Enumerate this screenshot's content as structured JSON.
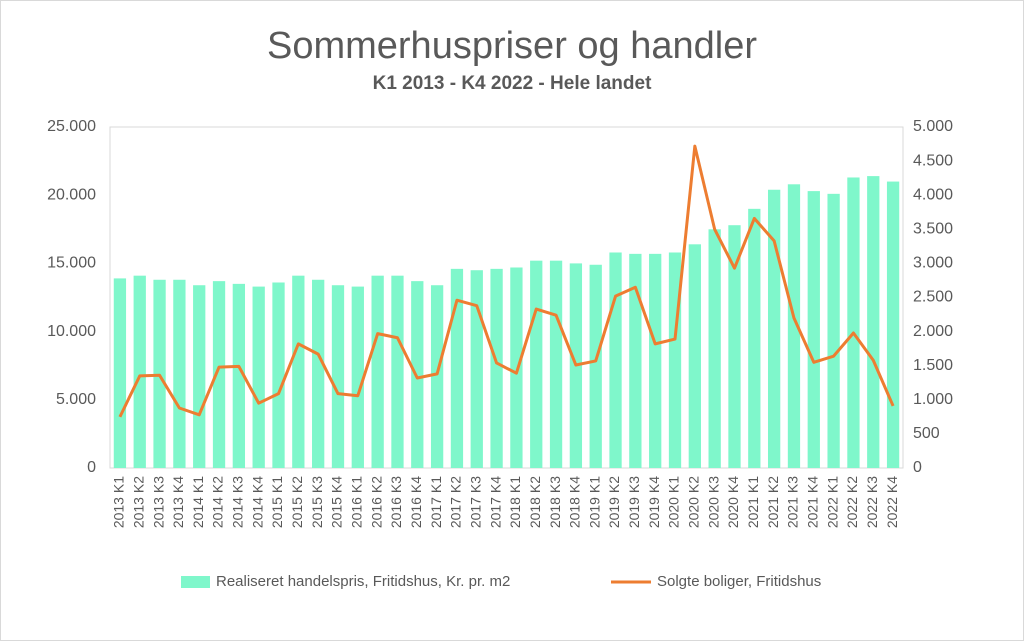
{
  "chart_data": {
    "type": "bar",
    "title": "Sommerhuspriser og handler",
    "subtitle": "K1 2013 - K4 2022 - Hele landet",
    "categories": [
      "2013 K1",
      "2013 K2",
      "2013 K3",
      "2013 K4",
      "2014 K1",
      "2014 K2",
      "2014 K3",
      "2014 K4",
      "2015 K1",
      "2015 K2",
      "2015 K3",
      "2015 K4",
      "2016 K1",
      "2016 K2",
      "2016 K3",
      "2016 K4",
      "2017 K1",
      "2017 K2",
      "2017 K3",
      "2017 K4",
      "2018 K1",
      "2018 K2",
      "2018 K3",
      "2018 K4",
      "2019 K1",
      "2019 K2",
      "2019 K3",
      "2019 K4",
      "2020 K1",
      "2020 K2",
      "2020 K3",
      "2020 K4",
      "2021 K1",
      "2021 K2",
      "2021 K3",
      "2021 K4",
      "2022 K1",
      "2022 K2",
      "2022 K3",
      "2022 K4"
    ],
    "series": [
      {
        "name": "Realiseret handelspris, Fritidshus, Kr. pr. m2",
        "type": "bar",
        "color": "#7ff7cb",
        "values": [
          13900,
          14100,
          13800,
          13800,
          13400,
          13700,
          13500,
          13300,
          13600,
          14100,
          13800,
          13400,
          13300,
          14100,
          14100,
          13700,
          13400,
          14600,
          14500,
          14600,
          14700,
          15200,
          15200,
          15000,
          14900,
          15800,
          15700,
          15700,
          15800,
          16400,
          17500,
          17800,
          19000,
          20400,
          20800,
          20300,
          20100,
          21300,
          21400,
          21000
        ]
      },
      {
        "name": "Solgte boliger, Fritidshus",
        "type": "line",
        "axis": "y2",
        "color": "#ed7d31",
        "values": [
          750,
          1350,
          1360,
          880,
          780,
          1480,
          1490,
          950,
          1090,
          1820,
          1670,
          1090,
          1060,
          1970,
          1910,
          1320,
          1380,
          2460,
          2380,
          1540,
          1390,
          2330,
          2240,
          1510,
          1570,
          2520,
          2650,
          1820,
          1890,
          4720,
          3500,
          2930,
          3660,
          3330,
          2200,
          1550,
          1640,
          1980,
          1580,
          910
        ]
      }
    ],
    "ylim": [
      0,
      25000
    ],
    "yticks": [
      0,
      {
        "value": 5000,
        "label": "5.000"
      },
      {
        "value": 10000,
        "label": "10.000"
      },
      {
        "value": 15000,
        "label": "15.000"
      },
      {
        "value": 20000,
        "label": "20.000"
      },
      {
        "value": 25000,
        "label": "25.000"
      }
    ],
    "y2lim": [
      0,
      5000
    ],
    "y2ticks": [
      0,
      500,
      {
        "value": 1000,
        "label": "1.000"
      },
      {
        "value": 1500,
        "label": "1.500"
      },
      {
        "value": 2000,
        "label": "2.000"
      },
      {
        "value": 2500,
        "label": "2.500"
      },
      {
        "value": 3000,
        "label": "3.000"
      },
      {
        "value": 3500,
        "label": "3.500"
      },
      {
        "value": 4000,
        "label": "4.000"
      },
      {
        "value": 4500,
        "label": "4.500"
      },
      {
        "value": 5000,
        "label": "5.000"
      }
    ],
    "grid": false,
    "legend": "bottom"
  }
}
